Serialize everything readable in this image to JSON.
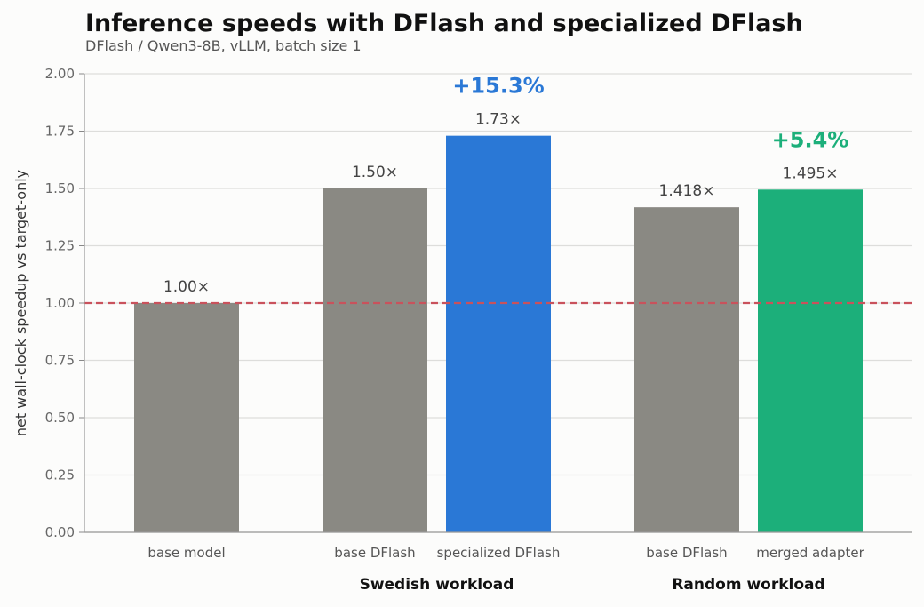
{
  "chart_data": {
    "type": "bar",
    "title": "Inference speeds with DFlash and specialized DFlash",
    "subtitle": "DFlash / Qwen3-8B, vLLM, batch size 1",
    "ylabel": "net wall-clock speedup vs target-only",
    "ylim": [
      0,
      2.0
    ],
    "yticks": [
      "0.00",
      "0.25",
      "0.50",
      "0.75",
      "1.00",
      "1.25",
      "1.50",
      "1.75",
      "2.00"
    ],
    "grid": true,
    "reference_line": {
      "y": 1.0,
      "color": "#c9525c",
      "style": "dashed"
    },
    "bars": [
      {
        "category": "base model",
        "value": 1.0,
        "label": "1.00×",
        "color": "#8a8983"
      },
      {
        "category": "base DFlash",
        "value": 1.5,
        "label": "1.50×",
        "color": "#8a8983"
      },
      {
        "category": "specialized DFlash",
        "value": 1.73,
        "label": "1.73×",
        "color": "#2a78d6"
      },
      {
        "category": "base DFlash",
        "value": 1.418,
        "label": "1.418×",
        "color": "#8a8983"
      },
      {
        "category": "merged adapter",
        "value": 1.495,
        "label": "1.495×",
        "color": "#1caf7a"
      }
    ],
    "groups": [
      {
        "label": "Swedish workload",
        "bars": [
          1,
          2
        ]
      },
      {
        "label": "Random workload",
        "bars": [
          3,
          4
        ]
      }
    ],
    "annotations": [
      {
        "text": "+15.3%",
        "bar": 2,
        "color": "#2a78d6"
      },
      {
        "text": "+5.4%",
        "bar": 4,
        "color": "#1caf7a"
      }
    ]
  }
}
